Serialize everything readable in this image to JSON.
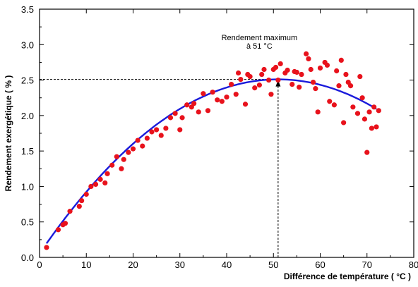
{
  "chart_data": {
    "type": "scatter",
    "xlabel": "Différence de température ( °C )",
    "ylabel": "Rendement exergétique ( % )",
    "xlim": [
      0,
      80
    ],
    "ylim": [
      0,
      3.5
    ],
    "xticks": [
      0,
      10,
      20,
      30,
      40,
      50,
      60,
      70,
      80
    ],
    "xtick_labels": [
      "0",
      "10",
      "20",
      "30",
      "40",
      "50",
      "60",
      "70",
      "80"
    ],
    "yticks": [
      0,
      0.5,
      1.0,
      1.5,
      2.0,
      2.5,
      3.0,
      3.5
    ],
    "ytick_labels": [
      "0.0",
      "0.5",
      "1.0",
      "1.5",
      "2.0",
      "2.5",
      "3.0",
      "3.5"
    ],
    "grid": false,
    "legend": "none",
    "colors": {
      "points": "#e8121c",
      "fit": "#1a1adb",
      "axes": "#000000"
    },
    "points": [
      [
        1.5,
        0.14
      ],
      [
        4.0,
        0.39
      ],
      [
        5.0,
        0.46
      ],
      [
        5.5,
        0.48
      ],
      [
        6.5,
        0.65
      ],
      [
        8.5,
        0.72
      ],
      [
        9.0,
        0.8
      ],
      [
        10.0,
        0.89
      ],
      [
        11.0,
        1.0
      ],
      [
        12.0,
        1.03
      ],
      [
        13.0,
        1.1
      ],
      [
        14.0,
        1.05
      ],
      [
        14.5,
        1.18
      ],
      [
        15.5,
        1.3
      ],
      [
        16.5,
        1.42
      ],
      [
        17.5,
        1.25
      ],
      [
        18.0,
        1.38
      ],
      [
        19.0,
        1.48
      ],
      [
        20.0,
        1.53
      ],
      [
        21.0,
        1.65
      ],
      [
        22.0,
        1.57
      ],
      [
        23.0,
        1.68
      ],
      [
        24.0,
        1.77
      ],
      [
        25.0,
        1.8
      ],
      [
        26.0,
        1.72
      ],
      [
        27.0,
        1.82
      ],
      [
        28.0,
        1.97
      ],
      [
        29.0,
        2.03
      ],
      [
        30.0,
        1.8
      ],
      [
        30.5,
        1.97
      ],
      [
        31.5,
        2.15
      ],
      [
        32.5,
        2.12
      ],
      [
        33.0,
        2.17
      ],
      [
        34.0,
        2.05
      ],
      [
        35.0,
        2.31
      ],
      [
        36.0,
        2.07
      ],
      [
        37.0,
        2.33
      ],
      [
        38.0,
        2.22
      ],
      [
        39.0,
        2.2
      ],
      [
        40.0,
        2.26
      ],
      [
        41.0,
        2.44
      ],
      [
        42.0,
        2.3
      ],
      [
        42.5,
        2.6
      ],
      [
        43.0,
        2.51
      ],
      [
        44.0,
        2.16
      ],
      [
        44.5,
        2.58
      ],
      [
        45.0,
        2.55
      ],
      [
        46.0,
        2.39
      ],
      [
        47.0,
        2.43
      ],
      [
        47.5,
        2.58
      ],
      [
        48.0,
        2.65
      ],
      [
        49.0,
        2.5
      ],
      [
        49.5,
        2.3
      ],
      [
        50.0,
        2.65
      ],
      [
        50.5,
        2.68
      ],
      [
        51.0,
        2.5
      ],
      [
        51.5,
        2.73
      ],
      [
        52.5,
        2.6
      ],
      [
        53.0,
        2.64
      ],
      [
        54.0,
        2.44
      ],
      [
        54.5,
        2.62
      ],
      [
        55.0,
        2.61
      ],
      [
        55.5,
        2.4
      ],
      [
        56.0,
        2.58
      ],
      [
        57.0,
        2.87
      ],
      [
        57.5,
        2.8
      ],
      [
        58.0,
        2.65
      ],
      [
        58.5,
        2.47
      ],
      [
        59.0,
        2.38
      ],
      [
        59.5,
        2.05
      ],
      [
        60.0,
        2.67
      ],
      [
        61.0,
        2.75
      ],
      [
        61.5,
        2.71
      ],
      [
        62.0,
        2.2
      ],
      [
        63.0,
        2.15
      ],
      [
        63.5,
        2.63
      ],
      [
        64.0,
        2.42
      ],
      [
        64.5,
        2.78
      ],
      [
        65.0,
        1.9
      ],
      [
        65.5,
        2.58
      ],
      [
        66.0,
        2.47
      ],
      [
        66.5,
        2.42
      ],
      [
        67.0,
        2.12
      ],
      [
        68.0,
        2.03
      ],
      [
        68.5,
        2.55
      ],
      [
        69.0,
        2.25
      ],
      [
        69.5,
        1.95
      ],
      [
        70.0,
        1.48
      ],
      [
        70.5,
        2.05
      ],
      [
        71.0,
        1.82
      ],
      [
        71.5,
        2.12
      ],
      [
        72.0,
        1.84
      ],
      [
        72.5,
        2.07
      ]
    ],
    "fit": {
      "type": "quadratic",
      "vertex_x": 51,
      "vertex_y": 2.51,
      "curvature": 0.000944,
      "x_range": [
        1.5,
        72
      ]
    },
    "annotations": [
      {
        "lines": [
          "Rendement maximum",
          "à 51 °C"
        ],
        "x": 51,
        "y": 2.51
      }
    ]
  }
}
